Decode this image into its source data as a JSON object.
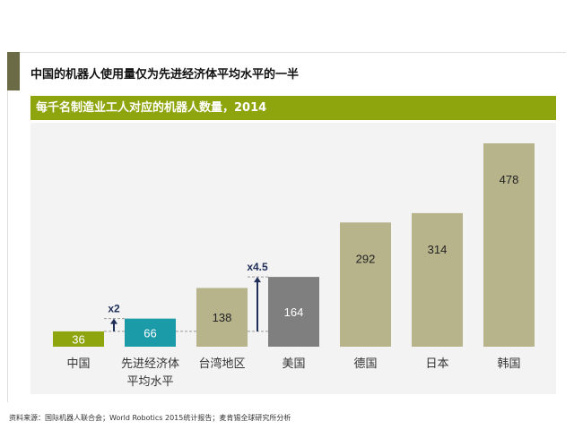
{
  "title": "中国的机器人使用量仅为先进经济体平均水平的一半",
  "source": "资料来源：国际机器人联合会；World Robotics 2015统计报告；麦肯锡全球研究所分析",
  "chart_data": {
    "type": "bar",
    "title": "每千名制造业工人对应的机器人数量，2014",
    "categories": [
      [
        "中国"
      ],
      [
        "先进经济体",
        "平均水平"
      ],
      [
        "台湾地区"
      ],
      [
        "美国"
      ],
      [
        "德国"
      ],
      [
        "日本"
      ],
      [
        "韩国"
      ]
    ],
    "values": [
      36,
      66,
      138,
      164,
      292,
      314,
      478
    ],
    "colors": [
      "#8ea50e",
      "#1b9aa8",
      "#b7b48c",
      "#7f7f7f",
      "#b7b48c",
      "#b7b48c",
      "#b7b48c"
    ],
    "label_colors": [
      "#fff",
      "#fff",
      "#222",
      "#fff",
      "#222",
      "#222",
      "#222"
    ],
    "annotations": [
      {
        "text": "x2",
        "from": 36,
        "to": 66
      },
      {
        "text": "x4.5",
        "from": 36,
        "to": 164
      }
    ],
    "ylim": [
      0,
      500
    ]
  }
}
